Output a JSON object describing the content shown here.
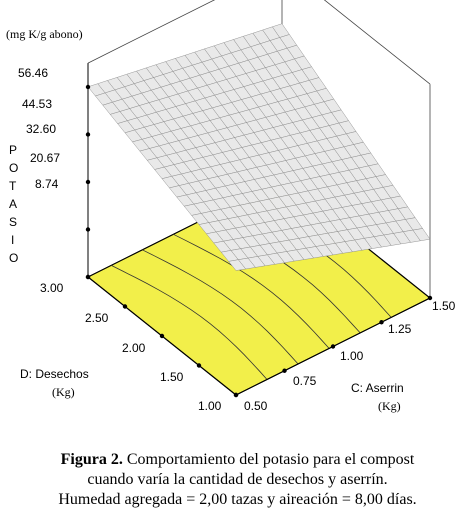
{
  "chart_data": {
    "type": "surface3d",
    "z_unit": "(mg K/g abono)",
    "z_label_letters": [
      "P",
      "O",
      "T",
      "A",
      "S",
      "I",
      "O"
    ],
    "z_ticks": [
      "56.46",
      "44.53",
      "32.60",
      "20.67",
      "8.74"
    ],
    "z_values": [
      56.46,
      44.53,
      32.6,
      20.67,
      8.74
    ],
    "x_label": "C: Aserrin",
    "x_unit": "(Kg)",
    "x_ticks": [
      "0.50",
      "0.75",
      "1.00",
      "1.25",
      "1.50"
    ],
    "x_range": [
      0.5,
      1.5
    ],
    "y_label": "D: Desechos",
    "y_unit": "(Kg)",
    "y_ticks": [
      "1.00",
      "1.50",
      "2.00",
      "2.50",
      "3.00"
    ],
    "y_range": [
      1.0,
      3.0
    ],
    "z_range": [
      8.74,
      56.46
    ],
    "surface_corners": [
      {
        "aserrin": 0.5,
        "desechos": 3.0,
        "potasio": 56.5
      },
      {
        "aserrin": 1.5,
        "desechos": 3.0,
        "potasio": 48.0
      },
      {
        "aserrin": 0.5,
        "desechos": 1.0,
        "potasio": 40.0
      },
      {
        "aserrin": 1.5,
        "desechos": 1.0,
        "potasio": 23.5
      }
    ],
    "colors": {
      "floor": "#f2ef4a",
      "surface": "#e9e9e9",
      "mesh": "#8a8a8a"
    }
  },
  "caption": {
    "label": "Figura 2.",
    "line1": " Comportamiento del potasio para el compost",
    "line2": "cuando varía la cantidad de desechos y aserrín.",
    "line3": "Humedad agregada = 2,00 tazas y aireación = 8,00 días."
  }
}
